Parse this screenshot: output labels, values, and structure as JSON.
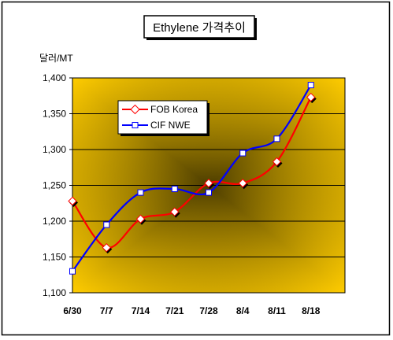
{
  "chart_data": {
    "type": "line",
    "title": "Ethylene 가격추이",
    "ylabel": "달러/MT",
    "xlabel": "",
    "categories": [
      "6/30",
      "7/7",
      "7/14",
      "7/21",
      "7/28",
      "8/4",
      "8/11",
      "8/18"
    ],
    "yticks": [
      "1,100",
      "1,150",
      "1,200",
      "1,250",
      "1,300",
      "1,350",
      "1,400"
    ],
    "ylim": [
      1100,
      1400
    ],
    "grid": true,
    "legend_position": "top-left",
    "series": [
      {
        "name": "FOB Korea",
        "color": "#ff0000",
        "marker": "diamond",
        "values": [
          1228,
          1163,
          1203,
          1213,
          1253,
          1253,
          1283,
          1373
        ]
      },
      {
        "name": "CIF NWE",
        "color": "#0000ff",
        "marker": "square",
        "values": [
          1130,
          1195,
          1240,
          1245,
          1240,
          1295,
          1315,
          1390
        ]
      }
    ]
  }
}
